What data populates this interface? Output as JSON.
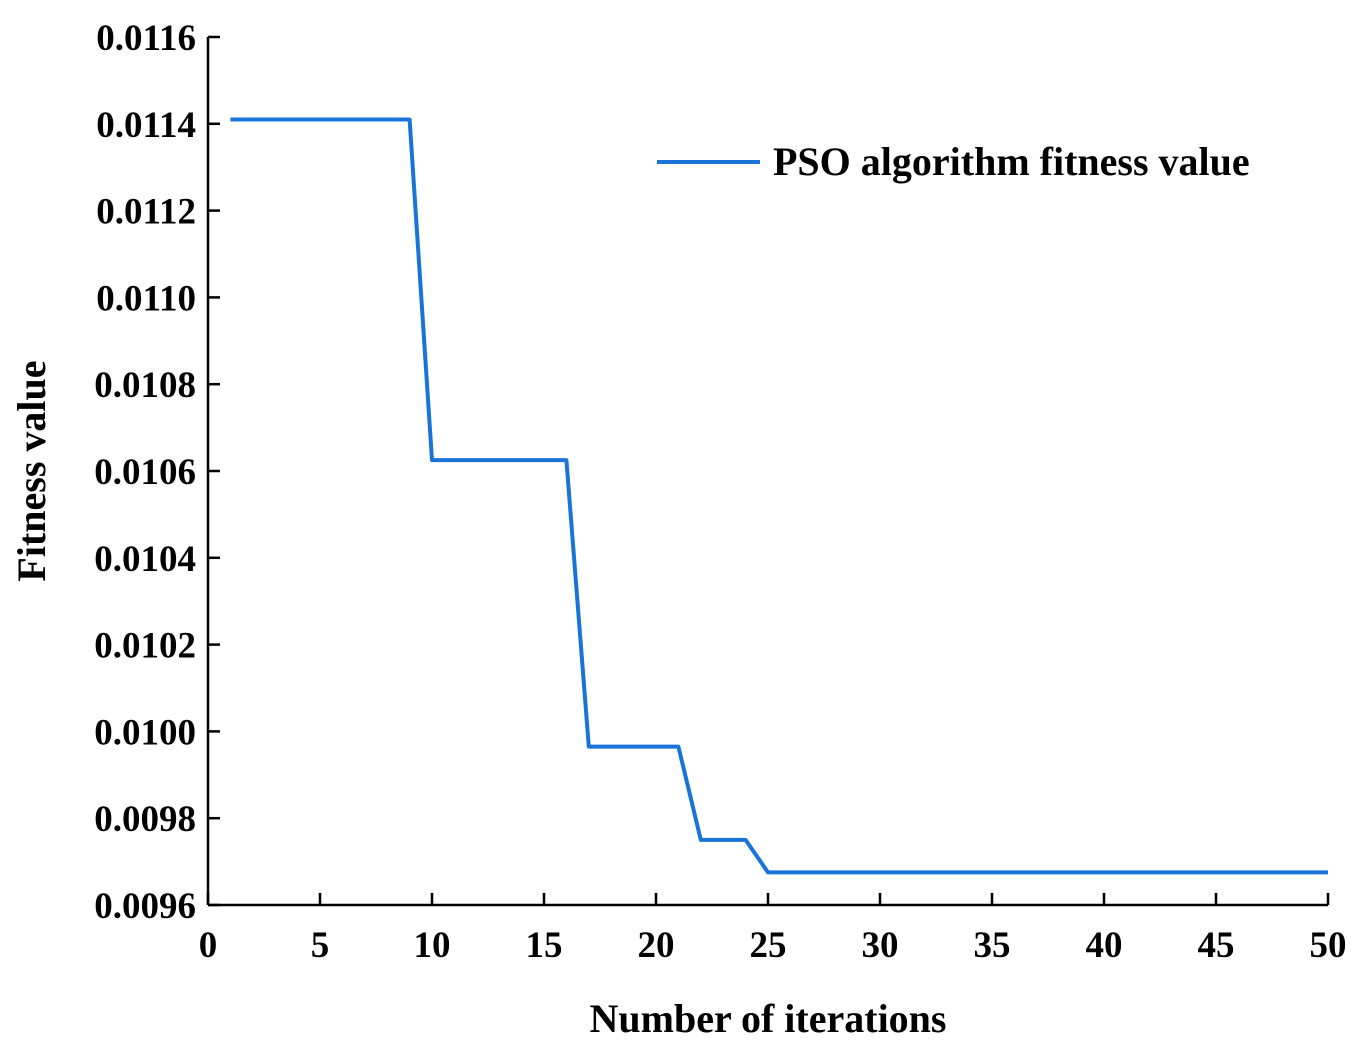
{
  "chart_data": {
    "type": "line",
    "xlabel": "Number of iterations",
    "ylabel": "Fitness value",
    "xlim": [
      0,
      50
    ],
    "ylim": [
      0.0096,
      0.0116
    ],
    "x_ticks": [
      "0",
      "5",
      "10",
      "15",
      "20",
      "25",
      "30",
      "35",
      "40",
      "45",
      "50"
    ],
    "y_ticks": [
      "0.0096",
      "0.0098",
      "0.0100",
      "0.0102",
      "0.0104",
      "0.0106",
      "0.0108",
      "0.0110",
      "0.0112",
      "0.0114",
      "0.0116"
    ],
    "grid": false,
    "legend_position": "top-right",
    "series": [
      {
        "name": "PSO algorithm fitness value",
        "color": "#1874d8",
        "x": [
          1,
          9,
          10,
          16,
          17,
          21,
          22,
          24,
          25,
          50
        ],
        "y": [
          0.01141,
          0.01141,
          0.010625,
          0.010625,
          0.009965,
          0.009965,
          0.00975,
          0.00975,
          0.009675,
          0.009675
        ]
      }
    ]
  }
}
